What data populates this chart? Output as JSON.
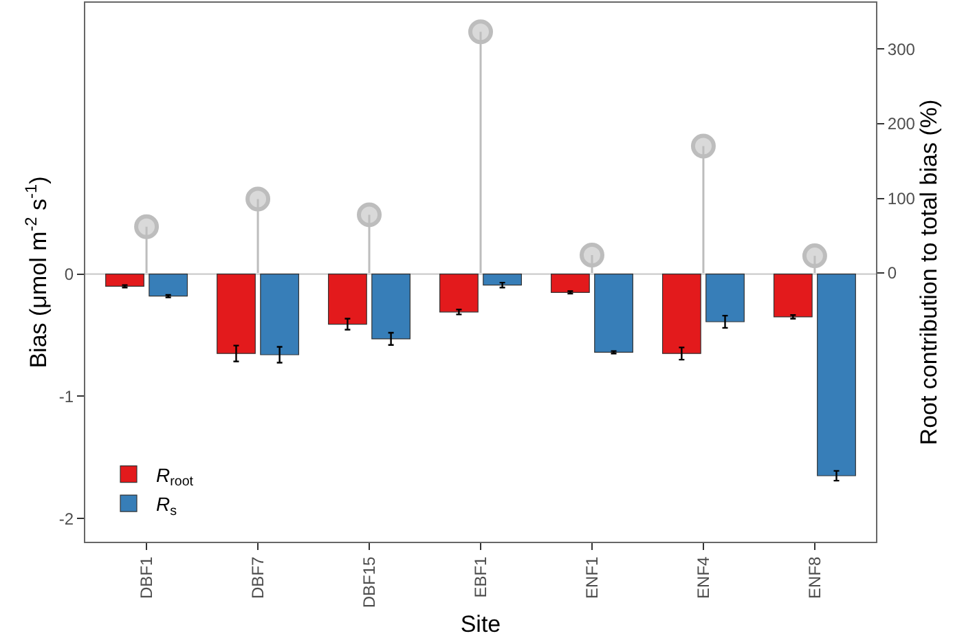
{
  "chart_data": {
    "type": "bar",
    "xlabel": "Site",
    "ylabel": "Bias (μmol m$^{-2}$ s$^{-1}$)",
    "y2label": "Root contribution to total bias (%)",
    "categories": [
      "DBF1",
      "DBF7",
      "DBF15",
      "EBF1",
      "ENF1",
      "ENF4",
      "ENF8"
    ],
    "series": [
      {
        "name": "R$_{root}$",
        "color": "#e31a1c",
        "values": [
          -0.1,
          -0.65,
          -0.41,
          -0.31,
          -0.15,
          -0.65,
          -0.35
        ],
        "errors": [
          0.01,
          0.065,
          0.045,
          0.02,
          0.01,
          0.05,
          0.015
        ]
      },
      {
        "name": "R$_{s}$",
        "color": "#377eb8",
        "values": [
          -0.18,
          -0.66,
          -0.53,
          -0.09,
          -0.64,
          -0.39,
          -1.65
        ],
        "errors": [
          0.01,
          0.065,
          0.05,
          0.02,
          0.01,
          0.05,
          0.04
        ]
      },
      {
        "type": "lollipop",
        "axis": "y2",
        "color": "#bdbdbd",
        "marker": "circle",
        "values": [
          62,
          99,
          78,
          323,
          24,
          170,
          23
        ]
      }
    ],
    "ylim": [
      -2.19,
      2.22
    ],
    "yticks": [
      -2,
      -1,
      0
    ],
    "y2lim": [
      -360,
      362
    ],
    "y2ticks": [
      0,
      100,
      200,
      300
    ],
    "ref_lines": [
      {
        "axis": "y",
        "value": 0,
        "color": "#cccccc"
      }
    ],
    "grid": false,
    "legend": "bottom left"
  }
}
